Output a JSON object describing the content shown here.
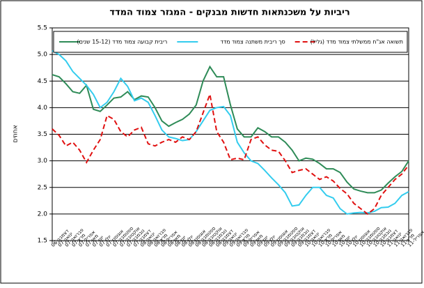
{
  "chart_data": {
    "type": "line",
    "title": "ריביות על משכנתאות חדשות מבנקים - המגזר צמוד המדד",
    "y_label": "אחוזים",
    "categories": [
      "דצמבר-06",
      "ינואר-07",
      "פברואר-07",
      "מרץ-07",
      "אפריל-07",
      "מאי-07",
      "יוני-07",
      "יולי-07",
      "אוגוסט-07",
      "ספטמבר-07",
      "אוקטובר-07",
      "נובמבר-07",
      "דצמבר-07",
      "ינואר-08",
      "פברואר-08",
      "מרץ-08",
      "אפריל-08",
      "מאי-08",
      "יוני-08",
      "יולי-08",
      "אוגוסט-08",
      "ספטמבר-08",
      "אוקטובר-08",
      "נובמבר-08",
      "דצמבר-08",
      "ינואר-09",
      "פברואר-09",
      "מרץ-09",
      "אפריל-09",
      "מאי-09",
      "יוני-09",
      "יולי-09",
      "אוגוסט-09",
      "ספטמבר-09",
      "אוקטובר-09",
      "נובמבר-09",
      "דצמבר-09",
      "ינואר-10",
      "פברואר-10",
      "מרץ-10",
      "אפריל-10",
      "מאי-10",
      "יוני-10",
      "יולי-10",
      "אוגוסט-10",
      "ספטמבר-10",
      "אוקטובר-10",
      "נובמבר-10",
      "דצמבר-10",
      "ינואר-11",
      "פברואר-11",
      "מרץ-11",
      "אפריל-11"
    ],
    "series": [
      {
        "name": "ריבית קבועה צמוד מדד (15-12 שנים)",
        "color": "#2e8b57",
        "dash": false,
        "values": [
          4.62,
          4.58,
          4.45,
          4.3,
          4.27,
          4.42,
          3.97,
          3.93,
          4.05,
          4.18,
          4.2,
          4.3,
          4.15,
          4.22,
          4.2,
          4.0,
          3.75,
          3.65,
          3.72,
          3.78,
          3.88,
          4.05,
          4.5,
          4.77,
          4.58,
          4.58,
          4.05,
          3.6,
          3.45,
          3.45,
          3.62,
          3.55,
          3.45,
          3.45,
          3.35,
          3.2,
          3.0,
          3.05,
          3.03,
          2.95,
          2.85,
          2.85,
          2.78,
          2.6,
          2.47,
          2.43,
          2.4,
          2.4,
          2.45,
          2.58,
          2.7,
          2.8,
          3.0
        ]
      },
      {
        "name": "סך ריבית משתנה צמוד מדד",
        "color": "#33ccee",
        "dash": false,
        "values": [
          5.07,
          5.0,
          4.88,
          4.68,
          4.55,
          4.42,
          4.25,
          4.0,
          4.1,
          4.3,
          4.55,
          4.4,
          4.13,
          4.18,
          4.1,
          3.85,
          3.58,
          3.45,
          3.42,
          3.38,
          3.4,
          3.55,
          3.75,
          3.95,
          4.0,
          4.02,
          3.85,
          3.35,
          3.15,
          3.0,
          2.95,
          2.82,
          2.68,
          2.55,
          2.4,
          2.15,
          2.17,
          2.35,
          2.5,
          2.5,
          2.35,
          2.3,
          2.1,
          2.0,
          2.02,
          2.03,
          2.02,
          2.05,
          2.12,
          2.13,
          2.2,
          2.35,
          2.42
        ]
      },
      {
        "name": "תשואה אג\"ח ממשלתי צמוד מדד (גליל)",
        "color": "#e01010",
        "dash": true,
        "values": [
          3.6,
          3.48,
          3.28,
          3.35,
          3.2,
          2.97,
          3.2,
          3.4,
          3.85,
          3.78,
          3.55,
          3.45,
          3.58,
          3.63,
          3.32,
          3.28,
          3.35,
          3.4,
          3.35,
          3.45,
          3.4,
          3.55,
          3.9,
          4.25,
          3.55,
          3.35,
          3.02,
          3.05,
          3.02,
          3.4,
          3.45,
          3.3,
          3.2,
          3.18,
          3.0,
          2.78,
          2.82,
          2.85,
          2.75,
          2.65,
          2.7,
          2.62,
          2.48,
          2.38,
          2.2,
          2.1,
          2.0,
          2.1,
          2.35,
          2.5,
          2.65,
          2.75,
          2.92
        ]
      }
    ],
    "ylim": [
      1.5,
      5.5
    ],
    "yticks": [
      1.5,
      {
        "value": 2,
        "label": "2.0"
      },
      2.5,
      {
        "value": 3,
        "label": "3.0"
      },
      3.5,
      {
        "value": 4,
        "label": "4.0"
      },
      4.5,
      {
        "value": 5,
        "label": "5.0"
      },
      5.5
    ],
    "grid": true,
    "legend": "top"
  }
}
